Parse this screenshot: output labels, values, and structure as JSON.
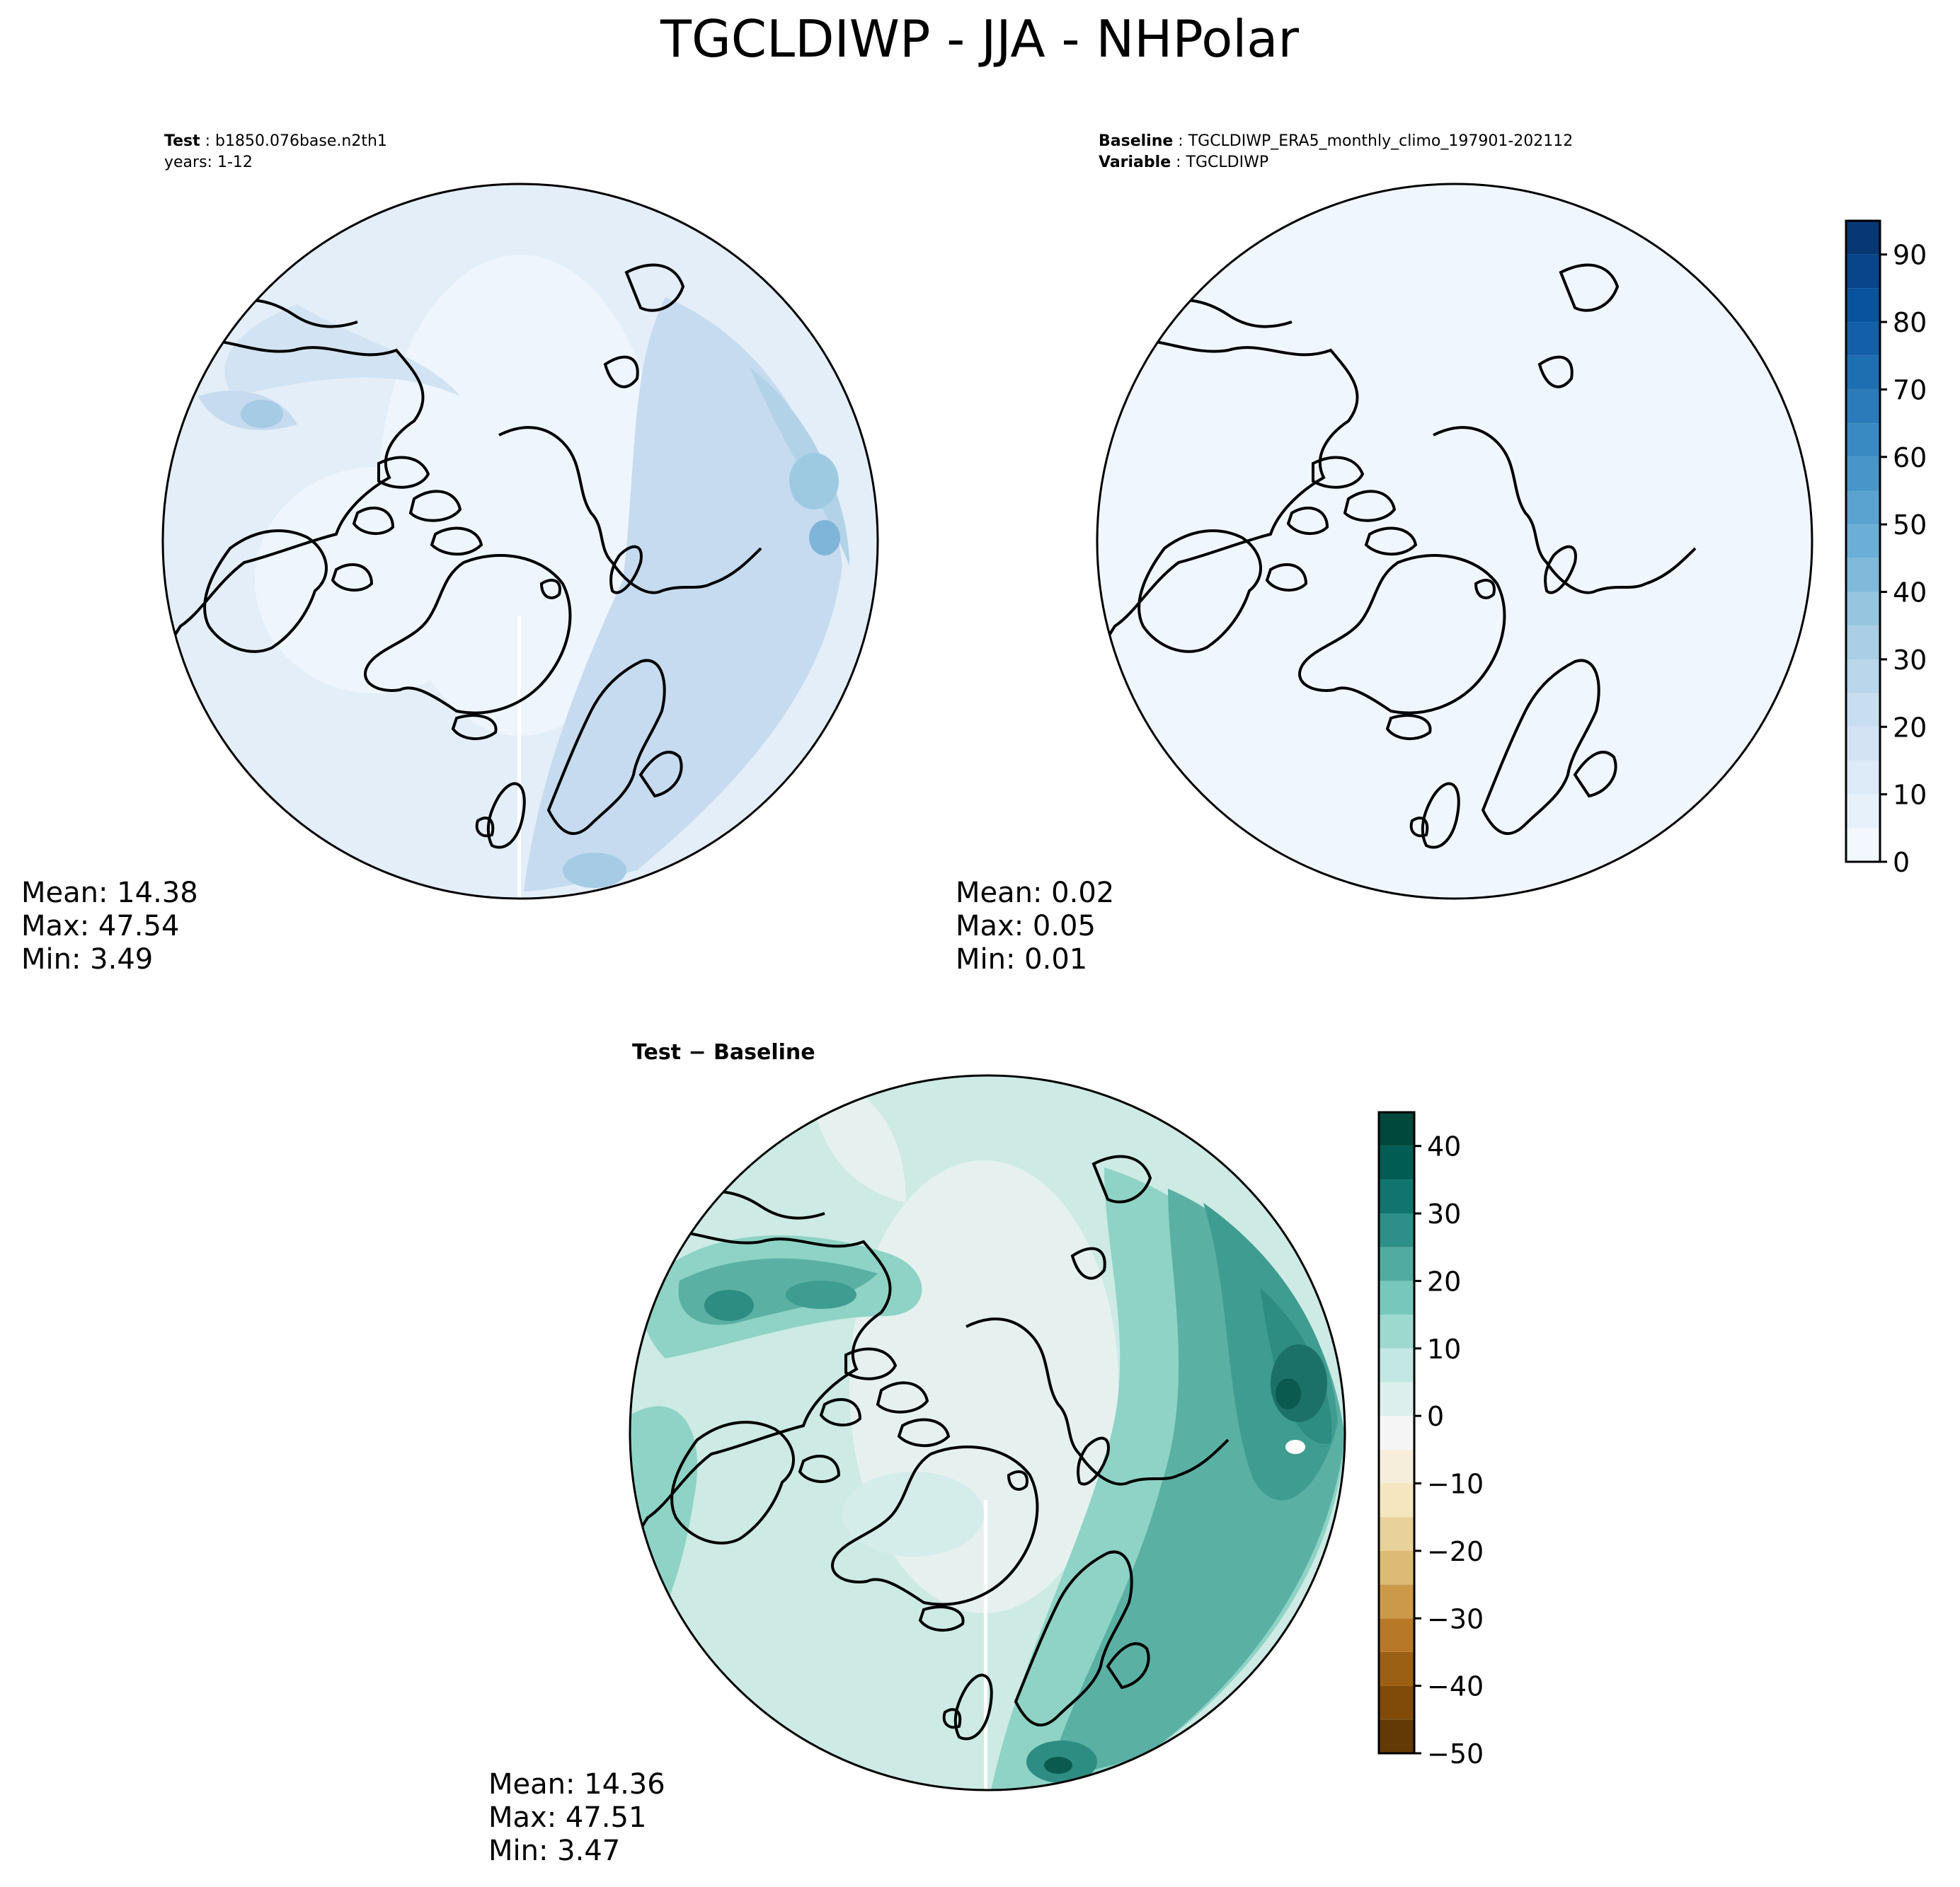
{
  "figure": {
    "title": "TGCLDIWP - JJA - NHPolar"
  },
  "colors": {
    "background": "#ffffff",
    "outline": "#000000",
    "coast": "#000000"
  },
  "chart_data": [
    {
      "type": "heatmap",
      "projection": "north polar stereographic",
      "panel": "test",
      "header": [
        {
          "key": "Test",
          "sep": " : ",
          "value": "b1850.076base.n2th1"
        },
        {
          "key": "",
          "sep": "",
          "value": "years: 1-12"
        }
      ],
      "stats": {
        "mean": "Mean: 14.38",
        "max": "Max: 47.54",
        "min": "Min:  3.49"
      },
      "colormap": "Blues",
      "colormap_range": [
        0,
        95
      ],
      "field_description": "low values over Arctic Ocean and Greenland, higher values (~20-47) over North Atlantic, Scandinavia/Russia and North Pacific",
      "value_min": 3.49,
      "value_max": 47.54,
      "value_mean": 14.38
    },
    {
      "type": "heatmap",
      "projection": "north polar stereographic",
      "panel": "baseline",
      "header": [
        {
          "key": "Baseline",
          "sep": " : ",
          "value": "TGCLDIWP_ERA5_monthly_climo_197901-202112"
        },
        {
          "key": "Variable",
          "sep": " : ",
          "value": "TGCLDIWP"
        }
      ],
      "stats": {
        "mean": "Mean:  0.02",
        "max": "Max:  0.05",
        "min": "Min:  0.01"
      },
      "colormap": "Blues",
      "colormap_range": [
        0,
        95
      ],
      "value_min": 0.01,
      "value_max": 0.05,
      "value_mean": 0.02,
      "colorbar": {
        "ticks": [
          "0",
          "10",
          "20",
          "30",
          "40",
          "50",
          "60",
          "70",
          "80",
          "90"
        ],
        "levels": [
          0,
          5,
          10,
          15,
          20,
          25,
          30,
          35,
          40,
          45,
          50,
          55,
          60,
          65,
          70,
          75,
          80,
          85,
          90,
          95
        ],
        "ylim": [
          0,
          95
        ]
      }
    },
    {
      "type": "heatmap",
      "projection": "north polar stereographic",
      "panel": "difference",
      "header_title": "Test − Baseline",
      "stats": {
        "mean": "Mean: 14.36",
        "max": "Max: 47.51",
        "min": "Min:  3.47"
      },
      "colormap": "BrBG",
      "colormap_range": [
        -50,
        45
      ],
      "value_min": 3.47,
      "value_max": 47.51,
      "value_mean": 14.36,
      "colorbar": {
        "ticks": [
          "40",
          "30",
          "20",
          "10",
          "0",
          "−10",
          "−20",
          "−30",
          "−40",
          "−50"
        ],
        "levels": [
          -50,
          -45,
          -40,
          -35,
          -30,
          -25,
          -20,
          -15,
          -10,
          -5,
          0,
          5,
          10,
          15,
          20,
          25,
          30,
          35,
          40,
          45
        ],
        "ylim": [
          -50,
          45
        ]
      }
    }
  ]
}
